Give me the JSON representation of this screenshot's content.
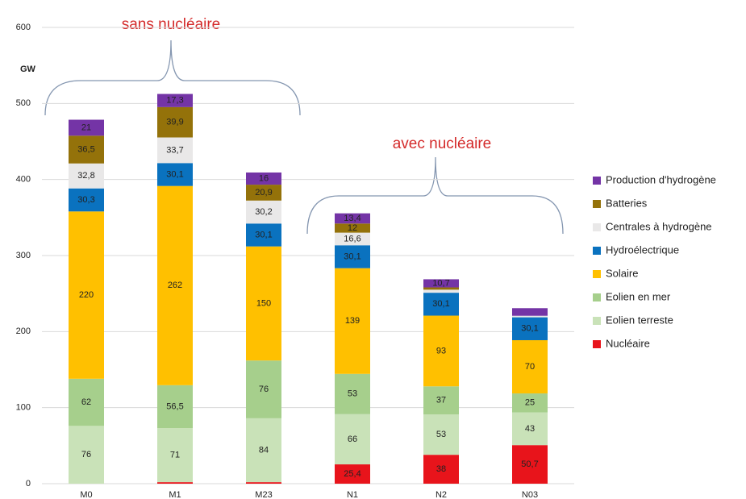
{
  "chart_data": {
    "type": "stacked_bar",
    "y_label": "GW",
    "annotations": [
      "sans nucléaire",
      "avec nucléaire"
    ],
    "categories": [
      "M0",
      "M1",
      "M23",
      "N1",
      "N2",
      "N03"
    ],
    "ylim": [
      0,
      600
    ],
    "yticks": [
      0,
      100,
      200,
      300,
      400,
      500,
      600
    ],
    "grid": true,
    "series": [
      {
        "name": "Nucléaire",
        "color": "#e8141b",
        "values": [
          0,
          2,
          2,
          25.4,
          38,
          50.7
        ],
        "value_labels": [
          null,
          null,
          null,
          "25,4",
          "38",
          "50,7"
        ]
      },
      {
        "name": "Eolien terreste",
        "color": "#c9e2b8",
        "values": [
          76,
          71,
          84,
          66,
          53,
          43
        ],
        "value_labels": [
          "76",
          "71",
          "84",
          "66",
          "53",
          "43"
        ]
      },
      {
        "name": "Eolien en mer",
        "color": "#a6cf8c",
        "values": [
          62,
          56.5,
          76,
          53,
          37,
          25
        ],
        "value_labels": [
          "62",
          "56,5",
          "76",
          "53",
          "37",
          "25"
        ]
      },
      {
        "name": "Solaire",
        "color": "#ffc000",
        "values": [
          220,
          262,
          150,
          139,
          93,
          70
        ],
        "value_labels": [
          "220",
          "262",
          "150",
          "139",
          "93",
          "70"
        ]
      },
      {
        "name": "Hydroélectrique",
        "color": "#0a72bf",
        "values": [
          30.3,
          30.1,
          30.1,
          30.1,
          30.1,
          30.1
        ],
        "value_labels": [
          "30,3",
          "30,1",
          "30,1",
          "30,1",
          "30,1",
          "30,1"
        ]
      },
      {
        "name": "Centrales à hydrogène",
        "color": "#e9e8e8",
        "values": [
          32.8,
          33.7,
          30.2,
          16.6,
          4,
          2
        ],
        "value_labels": [
          "32,8",
          "33,7",
          "30,2",
          "16,6",
          null,
          null
        ]
      },
      {
        "name": "Batteries",
        "color": "#94720a",
        "values": [
          36.5,
          39.9,
          20.9,
          12,
          3,
          0
        ],
        "value_labels": [
          "36,5",
          "39,9",
          "20,9",
          "12",
          null,
          null
        ]
      },
      {
        "name": "Production d'hydrogène",
        "color": "#7434a6",
        "values": [
          21,
          17.3,
          16,
          13.4,
          10.7,
          10
        ],
        "value_labels": [
          "21",
          "17,3",
          "16",
          "13,4",
          "10,7",
          null
        ]
      }
    ]
  }
}
